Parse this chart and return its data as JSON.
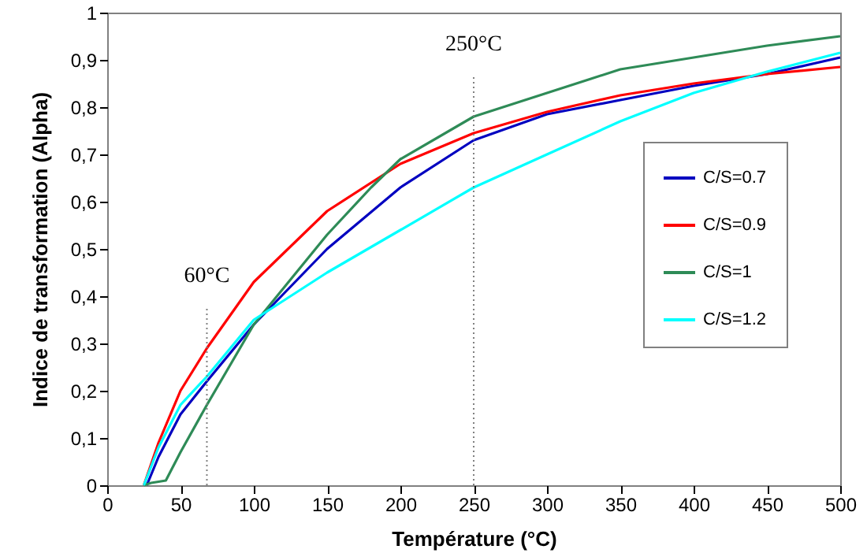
{
  "chart_data": {
    "type": "line",
    "xlabel": "Température (°C)",
    "ylabel": "Indice de transformation (Alpha)",
    "xlim": [
      0,
      500
    ],
    "xticks": [
      0,
      50,
      100,
      150,
      200,
      250,
      300,
      350,
      400,
      450,
      500
    ],
    "ylim": [
      0,
      1
    ],
    "yticks": [
      0,
      {
        "value": 0.1,
        "label": "0,1"
      },
      {
        "value": 0.2,
        "label": "0,2"
      },
      {
        "value": 0.3,
        "label": "0,3"
      },
      {
        "value": 0.4,
        "label": "0,4"
      },
      {
        "value": 0.5,
        "label": "0,5"
      },
      {
        "value": 0.6,
        "label": "0,6"
      },
      {
        "value": 0.7,
        "label": "0,7"
      },
      {
        "value": 0.8,
        "label": "0,8"
      },
      {
        "value": 0.9,
        "label": "0,9"
      },
      1
    ],
    "grid": false,
    "legend": "right",
    "marker": "none",
    "line_style": "solid",
    "series": [
      {
        "name": "C/S=0.7",
        "color": "#0000c0",
        "x": [
          27,
          35,
          50,
          68,
          100,
          150,
          200,
          250,
          300,
          350,
          400,
          450,
          500
        ],
        "values": [
          0,
          0.06,
          0.15,
          0.22,
          0.34,
          0.5,
          0.63,
          0.73,
          0.785,
          0.815,
          0.845,
          0.87,
          0.905
        ]
      },
      {
        "name": "C/S=0.9",
        "color": "#ff0000",
        "x": [
          25,
          35,
          50,
          68,
          100,
          150,
          200,
          250,
          300,
          350,
          400,
          450,
          500
        ],
        "values": [
          0,
          0.09,
          0.2,
          0.29,
          0.43,
          0.58,
          0.68,
          0.745,
          0.79,
          0.825,
          0.85,
          0.87,
          0.885
        ]
      },
      {
        "name": "C/S=1",
        "color": "#2e8b57",
        "x": [
          25,
          30,
          40,
          50,
          68,
          100,
          150,
          180,
          200,
          250,
          300,
          330,
          350,
          400,
          450,
          500
        ],
        "values": [
          0,
          0.005,
          0.01,
          0.07,
          0.17,
          0.34,
          0.53,
          0.63,
          0.69,
          0.78,
          0.83,
          0.86,
          0.88,
          0.905,
          0.93,
          0.95
        ]
      },
      {
        "name": "C/S=1.2",
        "color": "#00ffff",
        "x": [
          25,
          35,
          50,
          68,
          100,
          150,
          200,
          250,
          300,
          350,
          400,
          450,
          500
        ],
        "values": [
          0,
          0.08,
          0.17,
          0.23,
          0.35,
          0.45,
          0.54,
          0.63,
          0.7,
          0.77,
          0.83,
          0.875,
          0.915
        ]
      }
    ],
    "ref_lines": [
      {
        "axis": "x",
        "value": 68,
        "label": "60°C",
        "color": "#808080",
        "line_style": "dotted"
      },
      {
        "axis": "x",
        "value": 250,
        "label": "250°C",
        "color": "#808080",
        "line_style": "dotted"
      }
    ]
  }
}
